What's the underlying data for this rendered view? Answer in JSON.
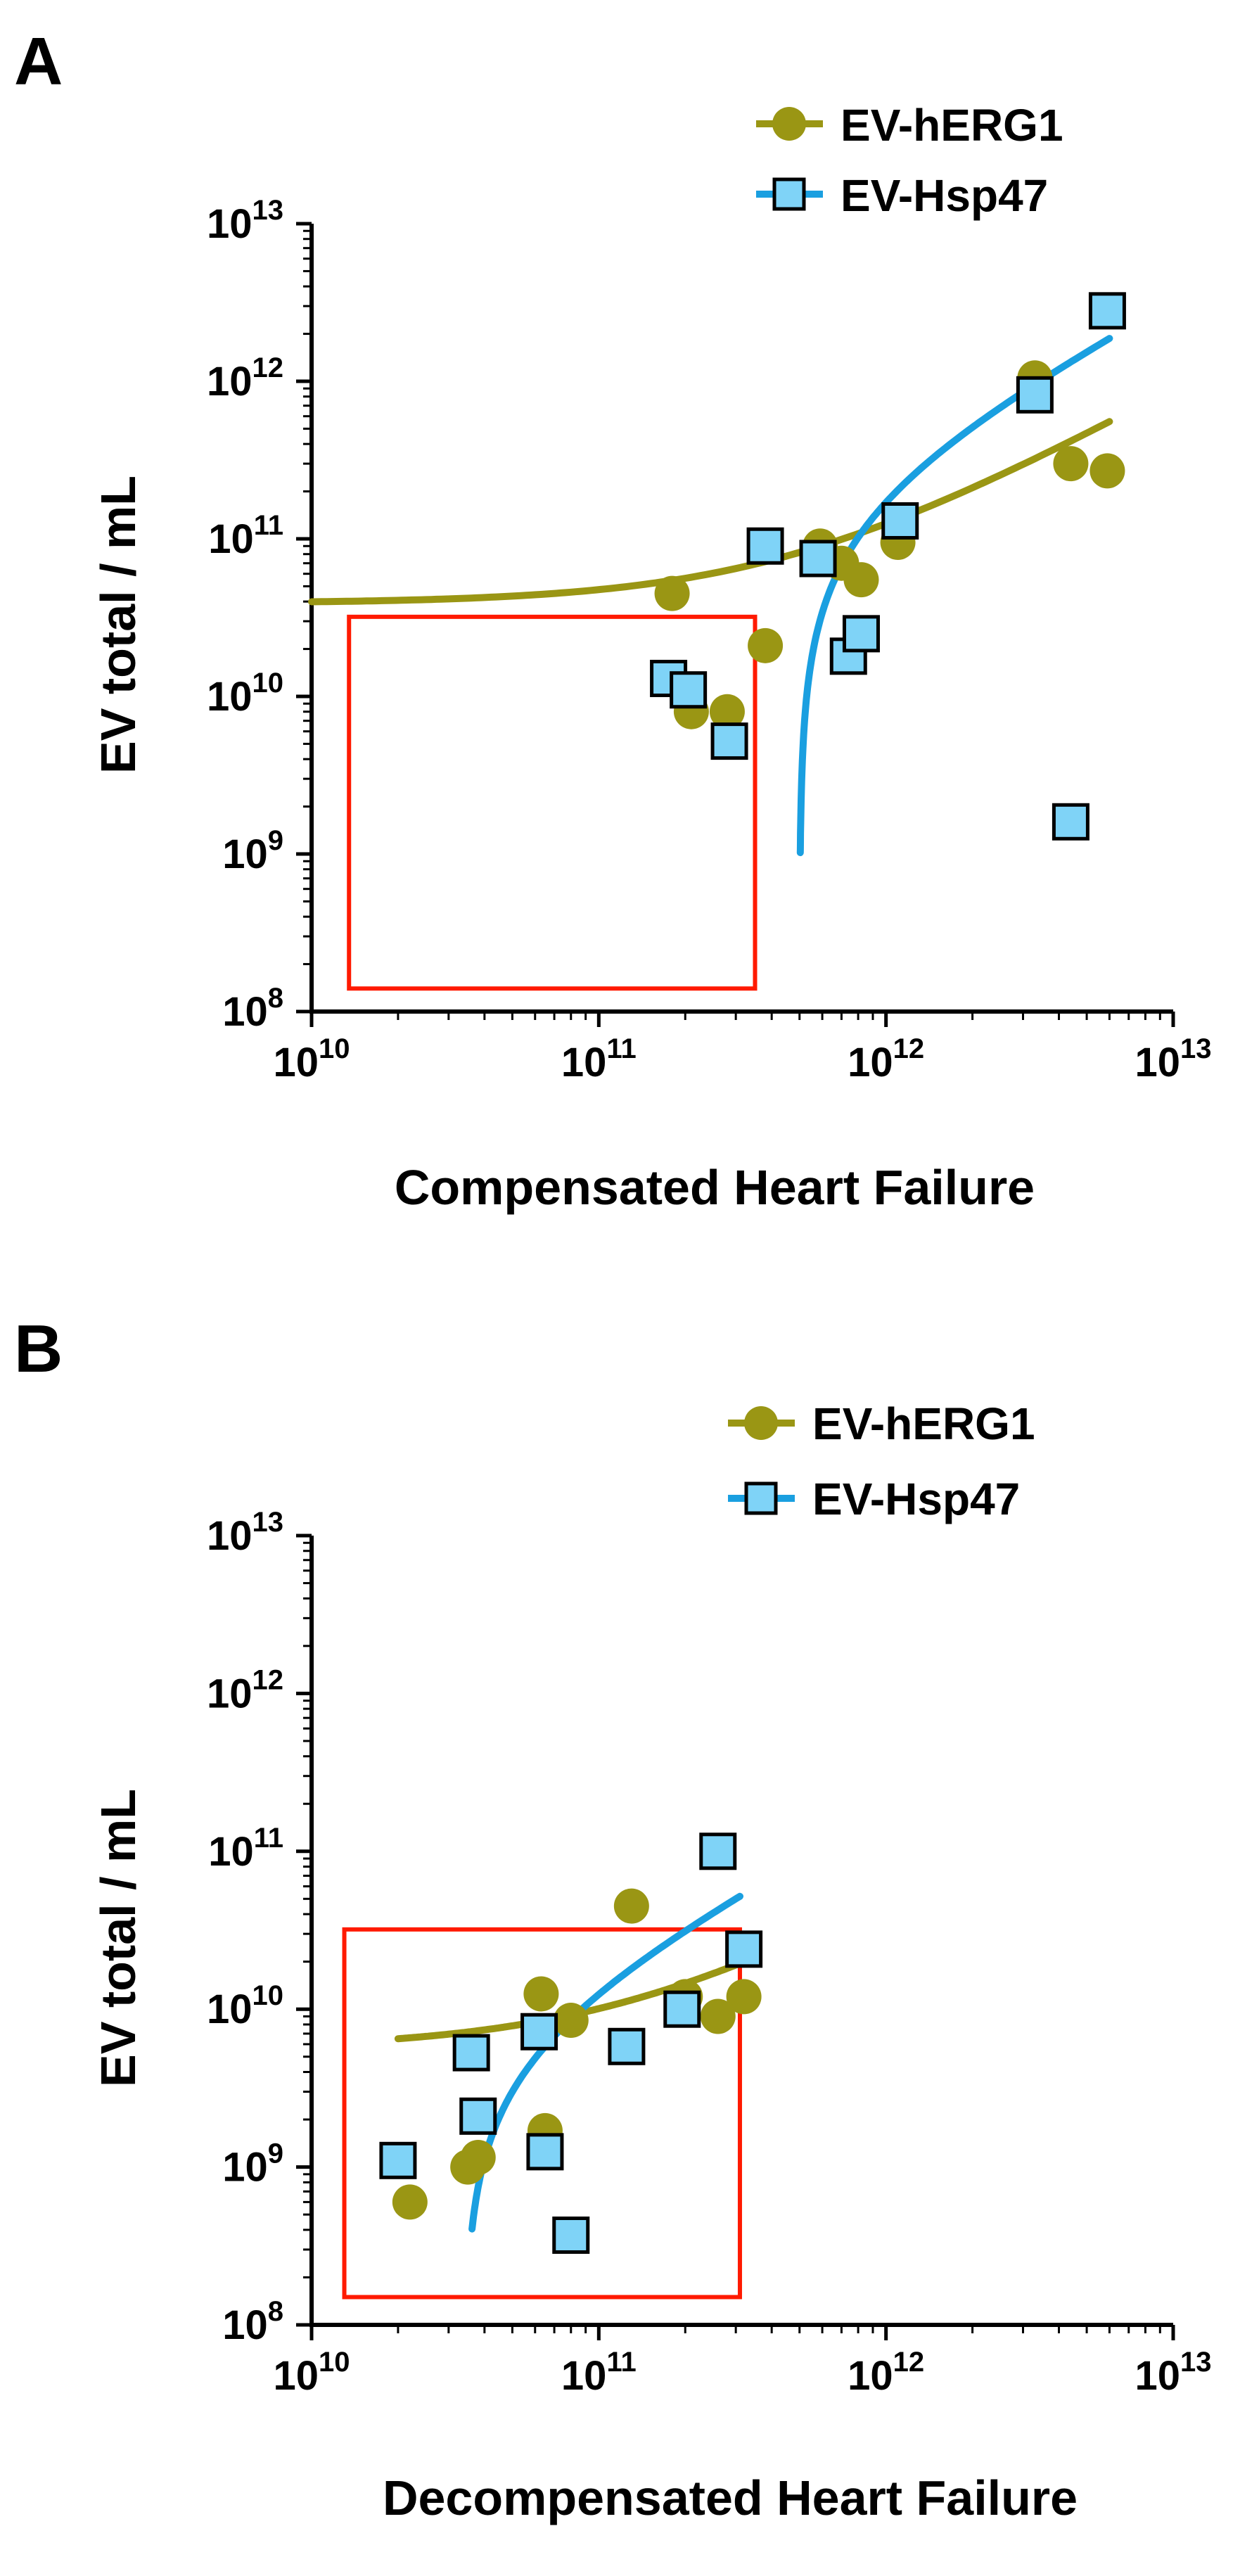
{
  "colors": {
    "herg": "#9a9614",
    "hsp": "#7fd3f7",
    "hsp_line": "#1a9fe0",
    "highlight": "#ff1a00"
  },
  "chart_data": [
    {
      "panel": "A",
      "type": "scatter",
      "xlabel": "Compensated Heart Failure",
      "ylabel": "EV total / mL",
      "x_scale": "log",
      "y_scale": "log",
      "xlim": [
        10000000000.0,
        10000000000000.0
      ],
      "ylim": [
        100000000.0,
        10000000000000.0
      ],
      "x_ticks": [
        {
          "base": "10",
          "exp": "10"
        },
        {
          "base": "10",
          "exp": "11"
        },
        {
          "base": "10",
          "exp": "12"
        },
        {
          "base": "10",
          "exp": "13"
        }
      ],
      "y_ticks": [
        {
          "base": "10",
          "exp": "8"
        },
        {
          "base": "10",
          "exp": "9"
        },
        {
          "base": "10",
          "exp": "10"
        },
        {
          "base": "10",
          "exp": "11"
        },
        {
          "base": "10",
          "exp": "12"
        },
        {
          "base": "10",
          "exp": "13"
        }
      ],
      "legend": [
        {
          "label": "EV-hERG1",
          "marker": "circle"
        },
        {
          "label": "EV-Hsp47",
          "marker": "square"
        }
      ],
      "highlight_box": {
        "x": [
          13500000000.0,
          350000000000.0
        ],
        "y": [
          140000000.0,
          32000000000.0
        ]
      },
      "series": [
        {
          "name": "EV-hERG1",
          "marker": "circle",
          "points": [
            [
              180000000000.0,
              45000000000.0
            ],
            [
              210000000000.0,
              8000000000.0
            ],
            [
              280000000000.0,
              8000000000.0
            ],
            [
              380000000000.0,
              21000000000.0
            ],
            [
              590000000000.0,
              90000000000.0
            ],
            [
              700000000000.0,
              70000000000.0
            ],
            [
              820000000000.0,
              55000000000.0
            ],
            [
              1100000000000.0,
              95000000000.0
            ],
            [
              3300000000000.0,
              1050000000000.0
            ],
            [
              4400000000000.0,
              300000000000.0
            ],
            [
              5900000000000.0,
              270000000000.0
            ]
          ],
          "fit": {
            "kind": "linear",
            "a": 39000000000.0,
            "b": 0.086,
            "x_range": [
              10000000000.0,
              6000000000000.0
            ]
          }
        },
        {
          "name": "EV-Hsp47",
          "marker": "square",
          "points": [
            [
              175000000000.0,
              13000000000.0
            ],
            [
              205000000000.0,
              11000000000.0
            ],
            [
              285000000000.0,
              5200000000.0
            ],
            [
              380000000000.0,
              90000000000.0
            ],
            [
              580000000000.0,
              75000000000.0
            ],
            [
              740000000000.0,
              18000000000.0
            ],
            [
              820000000000.0,
              25000000000.0
            ],
            [
              1120000000000.0,
              130000000000.0
            ],
            [
              3300000000000.0,
              820000000000.0
            ],
            [
              4400000000000.0,
              1600000000.0
            ],
            [
              5900000000000.0,
              2800000000000.0
            ]
          ],
          "fit": {
            "kind": "linear",
            "a": -170000000000.0,
            "b": 0.34,
            "x_range": [
              503000000000.0,
              6000000000000.0
            ]
          }
        }
      ]
    },
    {
      "panel": "B",
      "type": "scatter",
      "xlabel": "Decompensated Heart Failure",
      "ylabel": "EV total / mL",
      "x_scale": "log",
      "y_scale": "log",
      "xlim": [
        10000000000.0,
        10000000000000.0
      ],
      "ylim": [
        100000000.0,
        10000000000000.0
      ],
      "x_ticks": [
        {
          "base": "10",
          "exp": "10"
        },
        {
          "base": "10",
          "exp": "11"
        },
        {
          "base": "10",
          "exp": "12"
        },
        {
          "base": "10",
          "exp": "13"
        }
      ],
      "y_ticks": [
        {
          "base": "10",
          "exp": "8"
        },
        {
          "base": "10",
          "exp": "9"
        },
        {
          "base": "10",
          "exp": "10"
        },
        {
          "base": "10",
          "exp": "11"
        },
        {
          "base": "10",
          "exp": "12"
        },
        {
          "base": "10",
          "exp": "13"
        }
      ],
      "legend": [
        {
          "label": "EV-hERG1",
          "marker": "circle"
        },
        {
          "label": "EV-Hsp47",
          "marker": "square"
        }
      ],
      "highlight_box": {
        "x": [
          13000000000.0,
          310000000000.0
        ],
        "y": [
          150000000.0,
          32000000000.0
        ]
      },
      "series": [
        {
          "name": "EV-hERG1",
          "marker": "circle",
          "points": [
            [
              20000000000.0,
              1100000000.0
            ],
            [
              22000000000.0,
              600000000.0
            ],
            [
              35000000000.0,
              1000000000.0
            ],
            [
              38000000000.0,
              1150000000.0
            ],
            [
              63000000000.0,
              12500000000.0
            ],
            [
              65000000000.0,
              1700000000.0
            ],
            [
              80000000000.0,
              8500000000.0
            ],
            [
              130000000000.0,
              45000000000.0
            ],
            [
              200000000000.0,
              12000000000.0
            ],
            [
              260000000000.0,
              9000000000.0
            ],
            [
              320000000000.0,
              12000000000.0
            ]
          ],
          "fit": {
            "kind": "linear",
            "a": 5600000000.0,
            "b": 0.0448,
            "x_range": [
              20000000000.0,
              310000000000.0
            ]
          }
        },
        {
          "name": "EV-Hsp47",
          "marker": "square",
          "points": [
            [
              20000000000.0,
              1100000000.0
            ],
            [
              36000000000.0,
              5300000000.0
            ],
            [
              38000000000.0,
              2100000000.0
            ],
            [
              62000000000.0,
              7200000000.0
            ],
            [
              65000000000.0,
              1250000000.0
            ],
            [
              80000000000.0,
              370000000.0
            ],
            [
              125000000000.0,
              5800000000.0
            ],
            [
              195000000000.0,
              10000000000.0
            ],
            [
              260000000000.0,
              100000000000.0
            ],
            [
              320000000000.0,
              24000000000.0
            ]
          ],
          "fit": {
            "kind": "linear",
            "a": -6400000000.0,
            "b": 0.188,
            "x_range": [
              35100000000.0,
              310000000000.0
            ]
          }
        }
      ]
    }
  ],
  "panels": [
    {
      "letter": "A",
      "legend_items": [
        "EV-hERG1",
        "EV-Hsp47"
      ],
      "xlabel": "Compensated Heart Failure",
      "ylabel": "EV total / mL"
    },
    {
      "letter": "B",
      "legend_items": [
        "EV-hERG1",
        "EV-Hsp47"
      ],
      "xlabel": "Decompensated Heart Failure",
      "ylabel": "EV total / mL"
    }
  ]
}
